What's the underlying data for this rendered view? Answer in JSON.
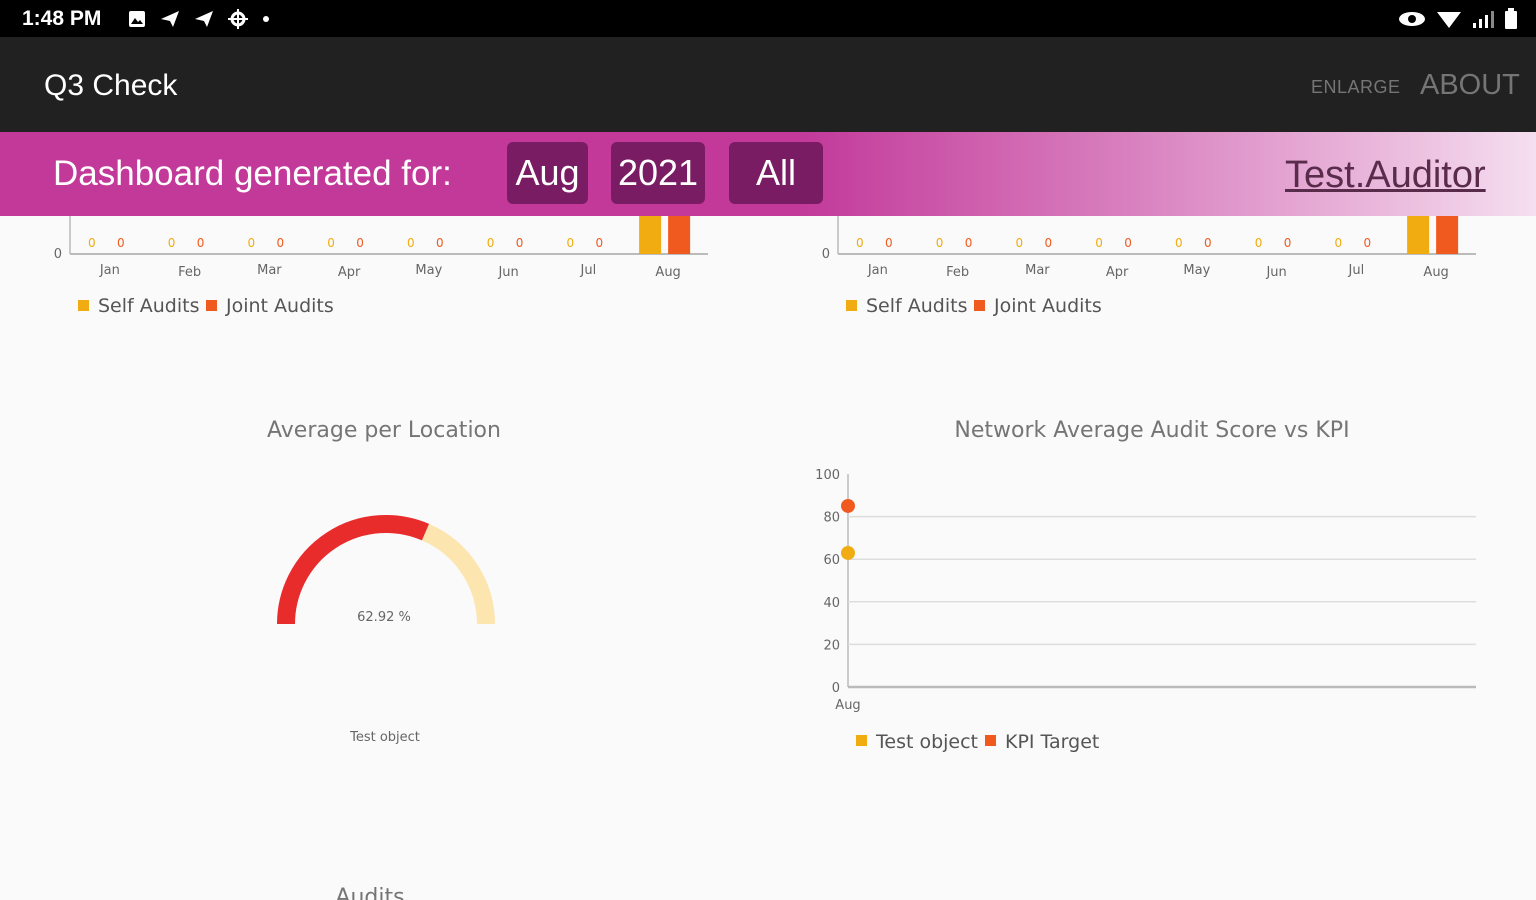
{
  "status_bar": {
    "time": "1:48 PM",
    "icons": [
      "image-icon",
      "send-icon",
      "send-icon",
      "settings-icon",
      "dot-icon"
    ],
    "right_icons": [
      "eye-icon",
      "wifi-icon",
      "signal-icon",
      "battery-icon"
    ]
  },
  "app_bar": {
    "title": "Q3 Check",
    "enlarge_label": "ENLARGE",
    "about_label": "ABOUT"
  },
  "filter": {
    "label": "Dashboard generated for:",
    "month": "Aug",
    "year": "2021",
    "scope": "All",
    "user": "Test.Auditor"
  },
  "colors": {
    "series1": "#f0ac10",
    "series2": "#f15a1e",
    "gauge_value": "#e82c2c",
    "gauge_rest": "#fde5b0",
    "banner": "#c2399a",
    "chip": "#7a1c63"
  },
  "chart_data": [
    {
      "type": "bar",
      "categories": [
        "Jan",
        "Feb",
        "Mar",
        "Apr",
        "May",
        "Jun",
        "Jul",
        "Aug"
      ],
      "series": [
        {
          "name": "Self Audits",
          "values": [
            0,
            0,
            0,
            0,
            0,
            0,
            0,
            1
          ]
        },
        {
          "name": "Joint Audits",
          "values": [
            0,
            0,
            0,
            0,
            0,
            0,
            0,
            1
          ]
        }
      ],
      "value_labels": [
        "0",
        "0",
        "0",
        "0",
        "0",
        "0",
        "0",
        ""
      ],
      "y_tick": "0",
      "legend_position": "bottom-left"
    },
    {
      "type": "bar",
      "categories": [
        "Jan",
        "Feb",
        "Mar",
        "Apr",
        "May",
        "Jun",
        "Jul",
        "Aug"
      ],
      "series": [
        {
          "name": "Self Audits",
          "values": [
            0,
            0,
            0,
            0,
            0,
            0,
            0,
            1
          ]
        },
        {
          "name": "Joint Audits",
          "values": [
            0,
            0,
            0,
            0,
            0,
            0,
            0,
            1
          ]
        }
      ],
      "value_labels": [
        "0",
        "0",
        "0",
        "0",
        "0",
        "0",
        "0",
        ""
      ],
      "y_tick": "0",
      "legend_position": "bottom-left"
    },
    {
      "type": "gauge",
      "title": "Average per Location",
      "value": 62.92,
      "max": 100,
      "value_label": "62.92 %",
      "caption": "Test object"
    },
    {
      "type": "scatter",
      "title": "Network Average Audit Score vs KPI",
      "categories": [
        "Aug"
      ],
      "ylim": [
        0,
        100
      ],
      "yticks": [
        "100",
        "80",
        "60",
        "40",
        "20",
        "0"
      ],
      "series": [
        {
          "name": "Test object",
          "values": [
            62.92
          ]
        },
        {
          "name": "KPI Target",
          "values": [
            85
          ]
        }
      ],
      "legend_position": "bottom-left"
    }
  ],
  "footer_partial_title": "Audits"
}
